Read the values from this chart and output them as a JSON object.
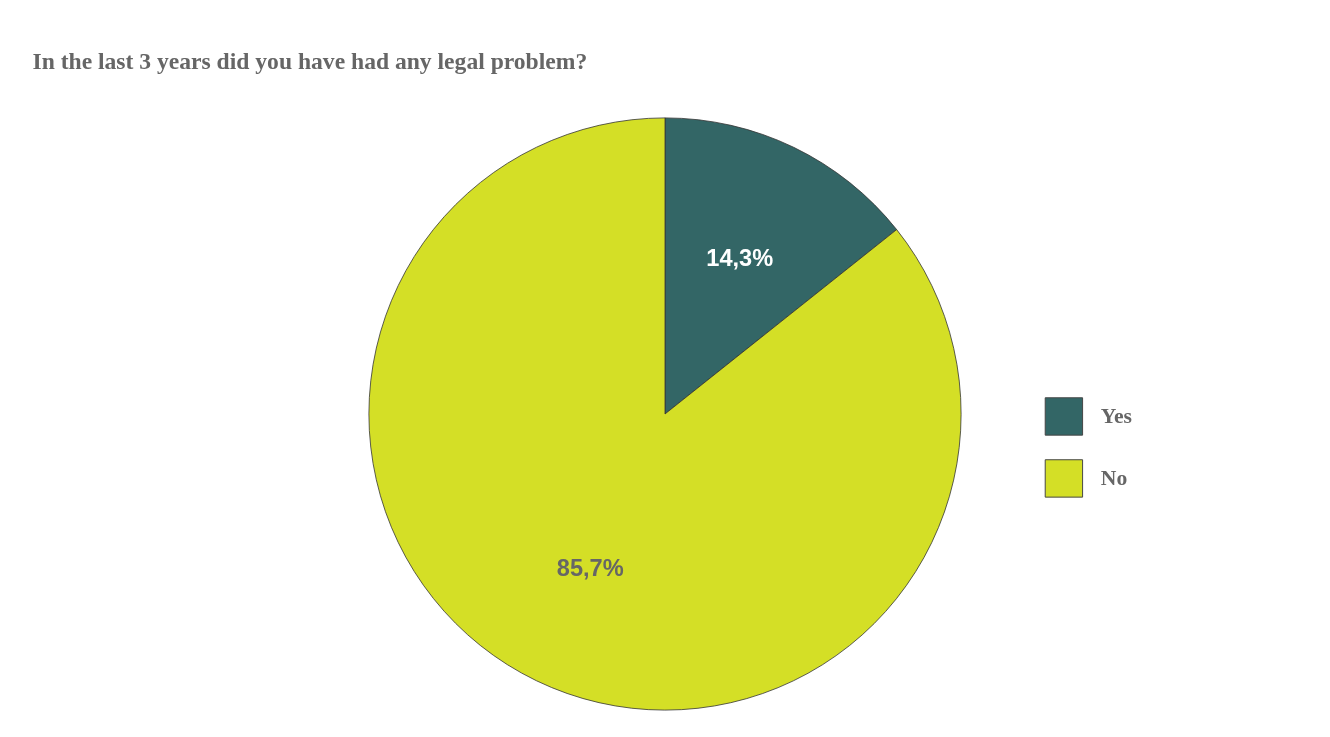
{
  "chart_data": {
    "type": "pie",
    "title": "In the last 3 years did you have had any legal problem?",
    "categories": [
      "Yes",
      "No"
    ],
    "values": [
      14.3,
      85.7
    ],
    "colors": [
      "#336666",
      "#d4df26"
    ],
    "value_labels": [
      "14,3%",
      "85,7%"
    ],
    "legend": "right"
  }
}
